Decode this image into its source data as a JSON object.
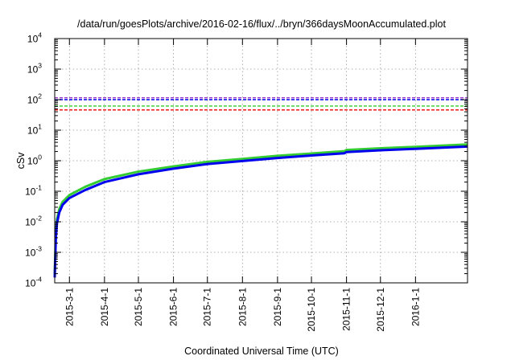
{
  "chart_data": {
    "type": "line",
    "title": "/data/run/goesPlots/archive/2016-02-16/flux/../bryn/366daysMoonAccumulated.plot",
    "xlabel": "Coordinated Universal Time (UTC)",
    "ylabel": "cSv",
    "yscale": "log",
    "ylim": [
      0.0001,
      10000
    ],
    "yticks": [
      {
        "value": 0.0001,
        "exp": "-4"
      },
      {
        "value": 0.001,
        "exp": "-3"
      },
      {
        "value": 0.01,
        "exp": "-2"
      },
      {
        "value": 0.1,
        "exp": "-1"
      },
      {
        "value": 1,
        "exp": "0"
      },
      {
        "value": 10,
        "exp": "1"
      },
      {
        "value": 100,
        "exp": "2"
      },
      {
        "value": 1000,
        "exp": "3"
      },
      {
        "value": 10000,
        "exp": "4"
      }
    ],
    "xlim": [
      "2015-02-16",
      "2016-02-16"
    ],
    "xticks": [
      "2015-3-1",
      "2015-4-1",
      "2015-5-1",
      "2015-6-1",
      "2015-7-1",
      "2015-8-1",
      "2015-9-1",
      "2015-10-1",
      "2015-11-1",
      "2015-12-1",
      "2016-1-1"
    ],
    "grid": true,
    "series": [
      {
        "color": "#33cc33",
        "style": "solid",
        "points": [
          [
            "2015-02-16",
            0.0002
          ],
          [
            "2015-02-17",
            0.004
          ],
          [
            "2015-02-18",
            0.012
          ],
          [
            "2015-02-20",
            0.026
          ],
          [
            "2015-02-23",
            0.045
          ],
          [
            "2015-03-01",
            0.075
          ],
          [
            "2015-03-15",
            0.14
          ],
          [
            "2015-04-01",
            0.25
          ],
          [
            "2015-05-01",
            0.44
          ],
          [
            "2015-06-01",
            0.65
          ],
          [
            "2015-07-01",
            0.92
          ],
          [
            "2015-08-01",
            1.15
          ],
          [
            "2015-09-01",
            1.45
          ],
          [
            "2015-10-01",
            1.72
          ],
          [
            "2015-10-30",
            2.05
          ],
          [
            "2015-11-01",
            2.25
          ],
          [
            "2015-12-01",
            2.55
          ],
          [
            "2016-01-01",
            2.85
          ],
          [
            "2016-02-16",
            3.4
          ]
        ]
      },
      {
        "color": "#0000ee",
        "style": "solid",
        "points": [
          [
            "2015-02-16",
            0.00015
          ],
          [
            "2015-02-17",
            0.003
          ],
          [
            "2015-02-18",
            0.009
          ],
          [
            "2015-02-20",
            0.02
          ],
          [
            "2015-02-23",
            0.036
          ],
          [
            "2015-03-01",
            0.06
          ],
          [
            "2015-03-15",
            0.11
          ],
          [
            "2015-04-01",
            0.2
          ],
          [
            "2015-05-01",
            0.36
          ],
          [
            "2015-06-01",
            0.55
          ],
          [
            "2015-07-01",
            0.78
          ],
          [
            "2015-08-01",
            0.98
          ],
          [
            "2015-09-01",
            1.23
          ],
          [
            "2015-10-01",
            1.48
          ],
          [
            "2015-10-30",
            1.75
          ],
          [
            "2015-11-01",
            1.92
          ],
          [
            "2015-12-01",
            2.2
          ],
          [
            "2016-01-01",
            2.45
          ],
          [
            "2016-02-16",
            2.9
          ]
        ]
      }
    ],
    "threshold_lines": [
      {
        "value": 115,
        "color": "#9933cc",
        "style": "dashed"
      },
      {
        "value": 100,
        "color": "#0000ee",
        "style": "dashed"
      },
      {
        "value": 62,
        "color": "#33cc33",
        "style": "dashed"
      },
      {
        "value": 46,
        "color": "#ee0000",
        "style": "dashed"
      }
    ]
  }
}
